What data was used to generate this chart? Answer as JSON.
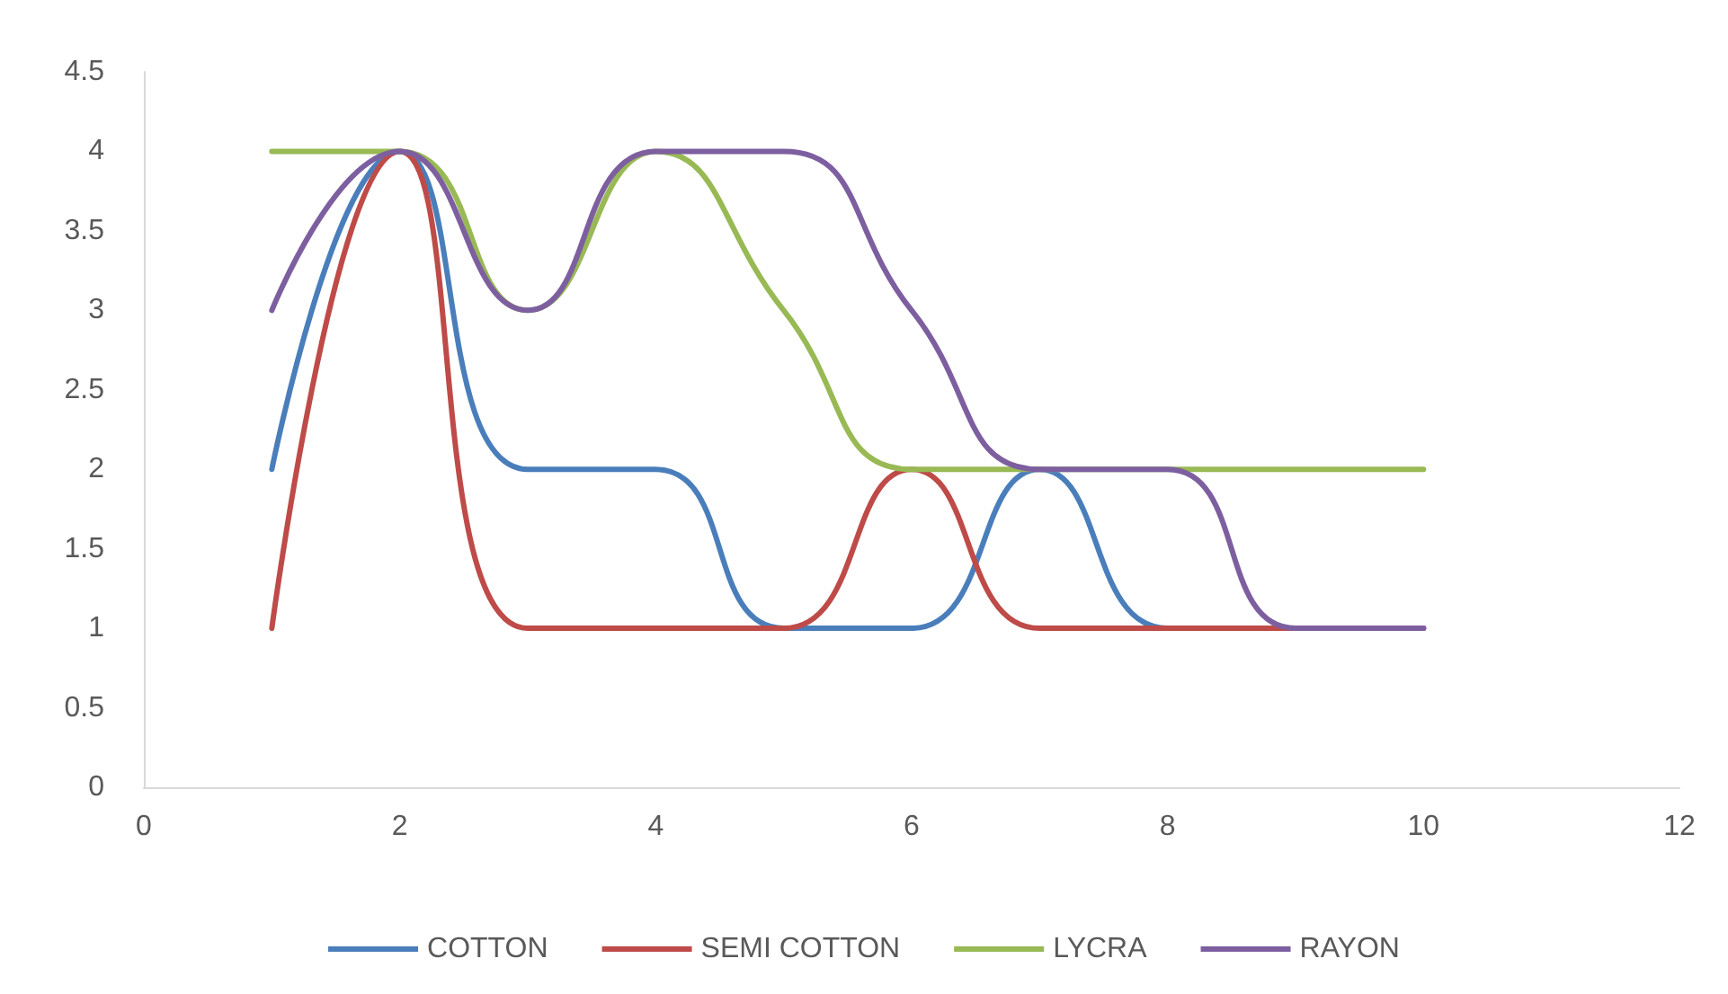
{
  "chart_data": {
    "type": "line",
    "x": [
      1,
      2,
      3,
      4,
      5,
      6,
      7,
      8,
      9,
      10
    ],
    "series": [
      {
        "name": "COTTON",
        "color": "#4a7ebb",
        "values": [
          2,
          4,
          2,
          2,
          1,
          1,
          2,
          1,
          1,
          1
        ]
      },
      {
        "name": "SEMI COTTON",
        "color": "#be4b48",
        "values": [
          1,
          4,
          1,
          1,
          1,
          2,
          1,
          1,
          1,
          1
        ]
      },
      {
        "name": "LYCRA",
        "color": "#98b954",
        "values": [
          4,
          4,
          3,
          4,
          3,
          2,
          2,
          2,
          2,
          2
        ]
      },
      {
        "name": "RAYON",
        "color": "#7d5fa0",
        "values": [
          3,
          4,
          3,
          4,
          4,
          3,
          2,
          2,
          1,
          1
        ]
      }
    ],
    "xlim": [
      0,
      12
    ],
    "xticks": [
      0,
      2,
      4,
      6,
      8,
      10,
      12
    ],
    "ylim": [
      0,
      4.5
    ],
    "yticks": [
      0,
      0.5,
      1,
      1.5,
      2,
      2.5,
      3,
      3.5,
      4,
      4.5
    ],
    "grid": false,
    "legend": "bottom",
    "marker": "none",
    "line_style": "solid"
  }
}
